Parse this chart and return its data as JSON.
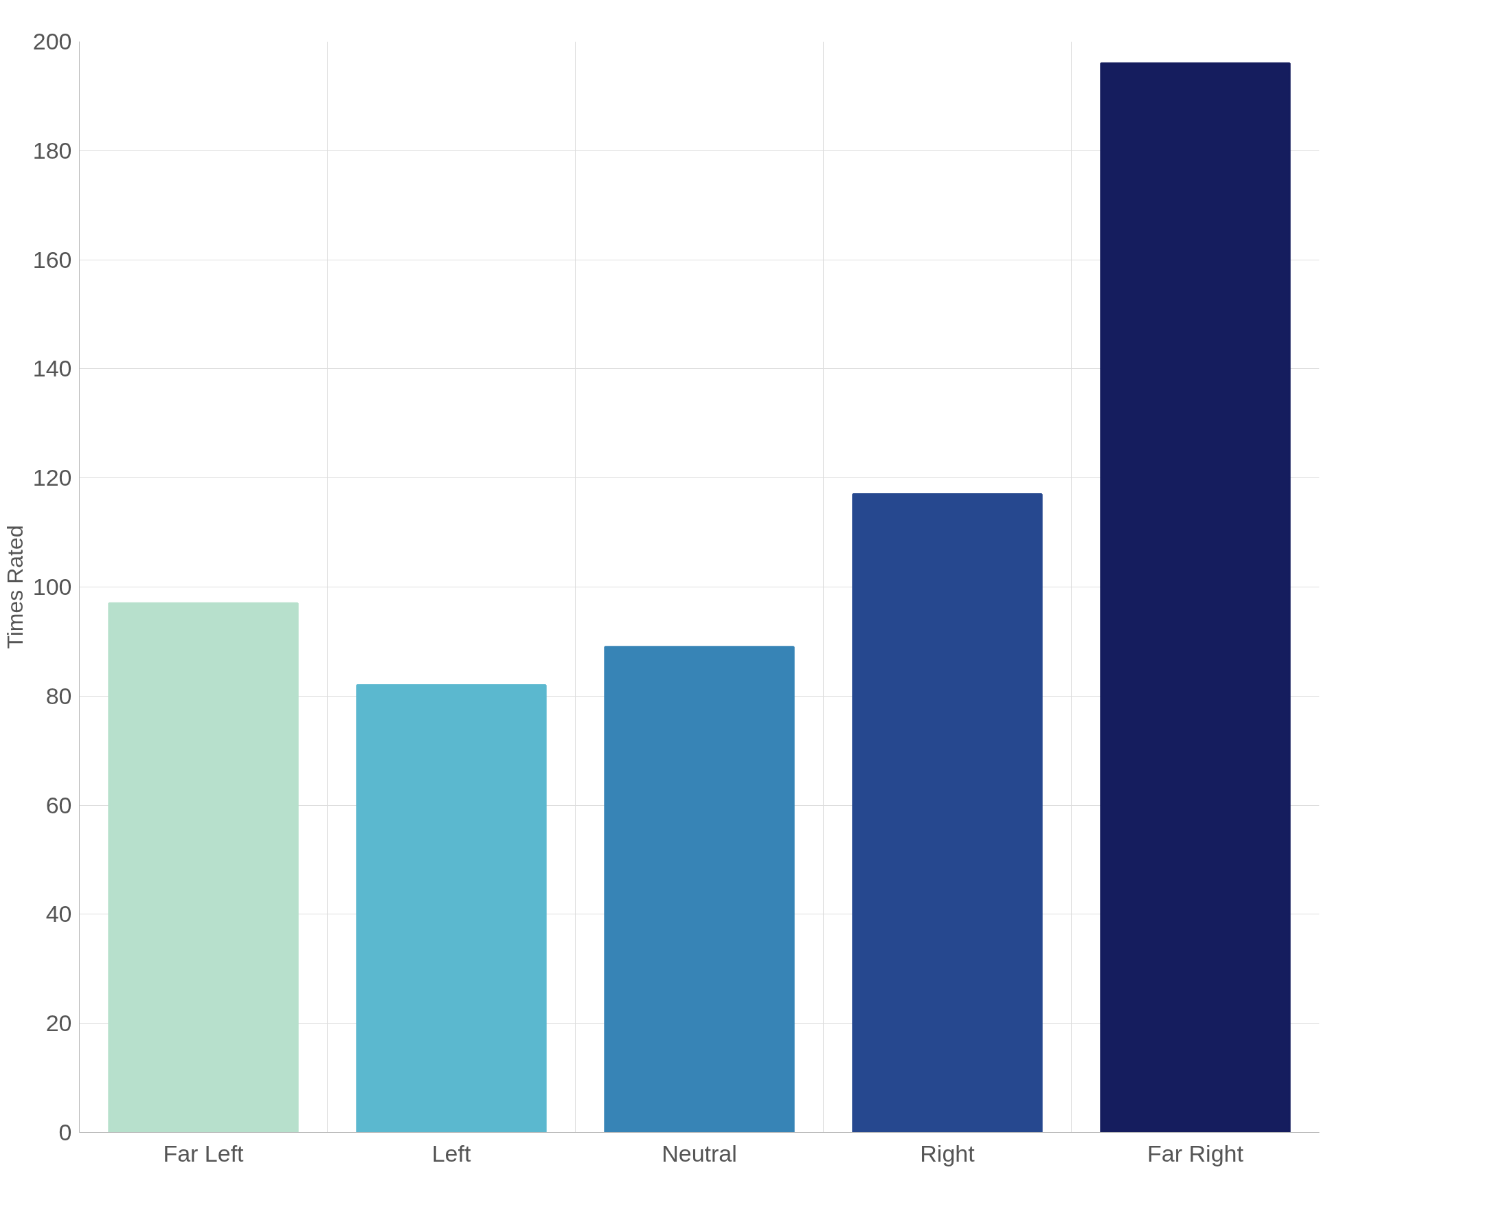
{
  "chart_data": {
    "type": "bar",
    "ylabel": "Times Rated",
    "categories": [
      "Far Left",
      "Left",
      "Neutral",
      "Right",
      "Far Right"
    ],
    "values": [
      97,
      82,
      89,
      117,
      196
    ],
    "colors": [
      "#b7e0cc",
      "#5bb8cf",
      "#3784b6",
      "#26488f",
      "#151d5e"
    ],
    "ylim": [
      0,
      200
    ],
    "yticks": [
      0,
      20,
      40,
      60,
      80,
      100,
      120,
      140,
      160,
      180,
      200
    ],
    "grid": true
  }
}
